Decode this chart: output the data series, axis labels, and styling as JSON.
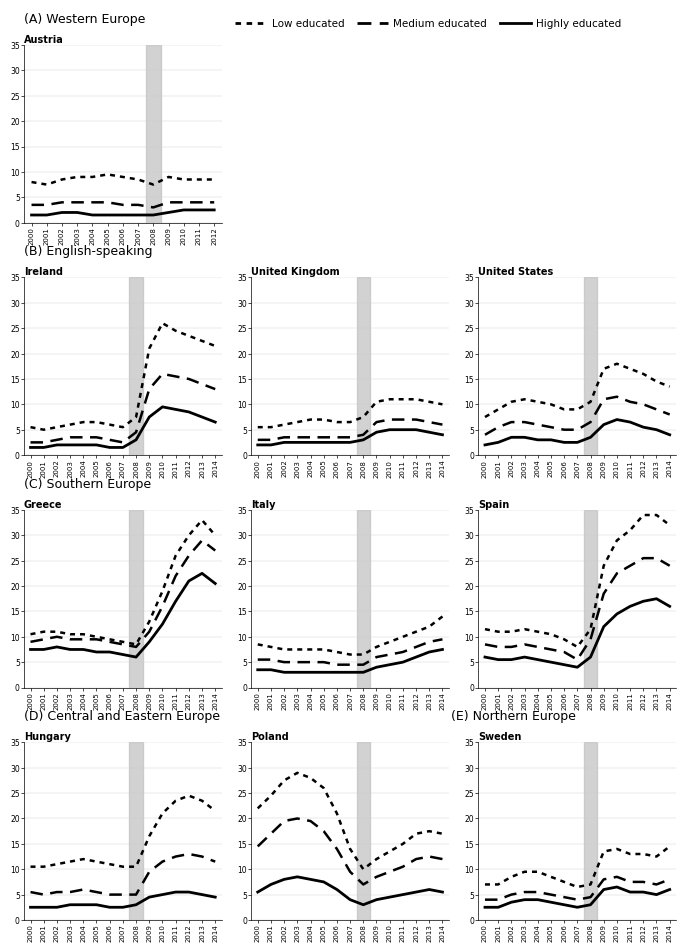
{
  "sections": [
    {
      "label": "(A) Western Europe",
      "countries": [
        {
          "name": "Austria",
          "years": [
            2000,
            2001,
            2002,
            2003,
            2004,
            2005,
            2006,
            2007,
            2008,
            2009,
            2010,
            2011,
            2012
          ],
          "low": [
            8.0,
            7.5,
            8.5,
            9.0,
            9.0,
            9.5,
            9.0,
            8.5,
            7.5,
            9.0,
            8.5,
            8.5,
            8.5
          ],
          "medium": [
            3.5,
            3.5,
            4.0,
            4.0,
            4.0,
            4.0,
            3.5,
            3.5,
            3.0,
            4.0,
            4.0,
            4.0,
            4.0
          ],
          "high": [
            1.5,
            1.5,
            2.0,
            2.0,
            1.5,
            1.5,
            1.5,
            1.5,
            1.5,
            2.0,
            2.5,
            2.5,
            2.5
          ]
        }
      ],
      "ncols": 1
    },
    {
      "label": "(B) English-speaking",
      "countries": [
        {
          "name": "Ireland",
          "years": [
            2000,
            2001,
            2002,
            2003,
            2004,
            2005,
            2006,
            2007,
            2008,
            2009,
            2010,
            2011,
            2012,
            2013,
            2014
          ],
          "low": [
            5.5,
            5.0,
            5.5,
            6.0,
            6.5,
            6.5,
            6.0,
            5.5,
            7.5,
            21.0,
            26.0,
            24.5,
            23.5,
            22.5,
            21.5
          ],
          "medium": [
            2.5,
            2.5,
            3.0,
            3.5,
            3.5,
            3.5,
            3.0,
            2.5,
            4.5,
            13.0,
            16.0,
            15.5,
            15.0,
            14.0,
            13.0
          ],
          "high": [
            1.5,
            1.5,
            2.0,
            2.0,
            2.0,
            2.0,
            1.5,
            1.5,
            3.0,
            7.5,
            9.5,
            9.0,
            8.5,
            7.5,
            6.5
          ]
        },
        {
          "name": "United Kingdom",
          "years": [
            2000,
            2001,
            2002,
            2003,
            2004,
            2005,
            2006,
            2007,
            2008,
            2009,
            2010,
            2011,
            2012,
            2013,
            2014
          ],
          "low": [
            5.5,
            5.5,
            6.0,
            6.5,
            7.0,
            7.0,
            6.5,
            6.5,
            7.5,
            10.5,
            11.0,
            11.0,
            11.0,
            10.5,
            10.0
          ],
          "medium": [
            3.0,
            3.0,
            3.5,
            3.5,
            3.5,
            3.5,
            3.5,
            3.5,
            4.0,
            6.5,
            7.0,
            7.0,
            7.0,
            6.5,
            6.0
          ],
          "high": [
            2.0,
            2.0,
            2.5,
            2.5,
            2.5,
            2.5,
            2.5,
            2.5,
            3.0,
            4.5,
            5.0,
            5.0,
            5.0,
            4.5,
            4.0
          ]
        },
        {
          "name": "United States",
          "years": [
            2000,
            2001,
            2002,
            2003,
            2004,
            2005,
            2006,
            2007,
            2008,
            2009,
            2010,
            2011,
            2012,
            2013,
            2014
          ],
          "low": [
            7.5,
            9.0,
            10.5,
            11.0,
            10.5,
            10.0,
            9.0,
            9.0,
            10.5,
            17.0,
            18.0,
            17.0,
            16.0,
            14.5,
            13.5
          ],
          "medium": [
            4.0,
            5.5,
            6.5,
            6.5,
            6.0,
            5.5,
            5.0,
            5.0,
            6.5,
            11.0,
            11.5,
            10.5,
            10.0,
            9.0,
            8.0
          ],
          "high": [
            2.0,
            2.5,
            3.5,
            3.5,
            3.0,
            3.0,
            2.5,
            2.5,
            3.5,
            6.0,
            7.0,
            6.5,
            5.5,
            5.0,
            4.0
          ]
        }
      ],
      "ncols": 3
    },
    {
      "label": "(C) Southern Europe",
      "countries": [
        {
          "name": "Greece",
          "years": [
            2000,
            2001,
            2002,
            2003,
            2004,
            2005,
            2006,
            2007,
            2008,
            2009,
            2010,
            2011,
            2012,
            2013,
            2014
          ],
          "low": [
            10.5,
            11.0,
            11.0,
            10.5,
            10.5,
            10.0,
            9.5,
            9.0,
            8.5,
            13.0,
            19.0,
            26.0,
            30.0,
            33.0,
            30.0
          ],
          "medium": [
            9.0,
            9.5,
            10.0,
            9.5,
            9.5,
            9.5,
            9.0,
            8.5,
            8.0,
            11.0,
            16.0,
            22.0,
            26.0,
            29.0,
            27.0
          ],
          "high": [
            7.5,
            7.5,
            8.0,
            7.5,
            7.5,
            7.0,
            7.0,
            6.5,
            6.0,
            9.0,
            12.5,
            17.0,
            21.0,
            22.5,
            20.5
          ]
        },
        {
          "name": "Italy",
          "years": [
            2000,
            2001,
            2002,
            2003,
            2004,
            2005,
            2006,
            2007,
            2008,
            2009,
            2010,
            2011,
            2012,
            2013,
            2014
          ],
          "low": [
            8.5,
            8.0,
            7.5,
            7.5,
            7.5,
            7.5,
            7.0,
            6.5,
            6.5,
            8.0,
            9.0,
            10.0,
            11.0,
            12.0,
            14.0
          ],
          "medium": [
            5.5,
            5.5,
            5.0,
            5.0,
            5.0,
            5.0,
            4.5,
            4.5,
            4.5,
            6.0,
            6.5,
            7.0,
            8.0,
            9.0,
            9.5
          ],
          "high": [
            3.5,
            3.5,
            3.0,
            3.0,
            3.0,
            3.0,
            3.0,
            3.0,
            3.0,
            4.0,
            4.5,
            5.0,
            6.0,
            7.0,
            7.5
          ]
        },
        {
          "name": "Spain",
          "years": [
            2000,
            2001,
            2002,
            2003,
            2004,
            2005,
            2006,
            2007,
            2008,
            2009,
            2010,
            2011,
            2012,
            2013,
            2014
          ],
          "low": [
            11.5,
            11.0,
            11.0,
            11.5,
            11.0,
            10.5,
            9.5,
            8.0,
            11.5,
            24.0,
            29.0,
            31.0,
            34.0,
            34.0,
            32.0
          ],
          "medium": [
            8.5,
            8.0,
            8.0,
            8.5,
            8.0,
            7.5,
            7.0,
            5.5,
            9.5,
            18.5,
            22.5,
            24.0,
            25.5,
            25.5,
            24.0
          ],
          "high": [
            6.0,
            5.5,
            5.5,
            6.0,
            5.5,
            5.0,
            4.5,
            4.0,
            6.0,
            12.0,
            14.5,
            16.0,
            17.0,
            17.5,
            16.0
          ]
        }
      ],
      "ncols": 3
    },
    {
      "label": "(D) Central and Eastern Europe",
      "label_e": "(E) Northern Europe",
      "countries": [
        {
          "name": "Hungary",
          "years": [
            2000,
            2001,
            2002,
            2003,
            2004,
            2005,
            2006,
            2007,
            2008,
            2009,
            2010,
            2011,
            2012,
            2013,
            2014
          ],
          "low": [
            10.5,
            10.5,
            11.0,
            11.5,
            12.0,
            11.5,
            11.0,
            10.5,
            10.5,
            16.5,
            21.0,
            23.5,
            24.5,
            23.5,
            21.5
          ],
          "medium": [
            5.5,
            5.0,
            5.5,
            5.5,
            6.0,
            5.5,
            5.0,
            5.0,
            5.0,
            9.5,
            11.5,
            12.5,
            13.0,
            12.5,
            11.5
          ],
          "high": [
            2.5,
            2.5,
            2.5,
            3.0,
            3.0,
            3.0,
            2.5,
            2.5,
            3.0,
            4.5,
            5.0,
            5.5,
            5.5,
            5.0,
            4.5
          ]
        },
        {
          "name": "Poland",
          "years": [
            2000,
            2001,
            2002,
            2003,
            2004,
            2005,
            2006,
            2007,
            2008,
            2009,
            2010,
            2011,
            2012,
            2013,
            2014
          ],
          "low": [
            22.0,
            24.5,
            27.5,
            29.0,
            28.0,
            26.0,
            21.0,
            14.0,
            10.0,
            12.0,
            13.5,
            15.0,
            17.0,
            17.5,
            17.0
          ],
          "medium": [
            14.5,
            17.0,
            19.5,
            20.0,
            19.5,
            17.5,
            14.0,
            9.5,
            7.0,
            8.5,
            9.5,
            10.5,
            12.0,
            12.5,
            12.0
          ],
          "high": [
            5.5,
            7.0,
            8.0,
            8.5,
            8.0,
            7.5,
            6.0,
            4.0,
            3.0,
            4.0,
            4.5,
            5.0,
            5.5,
            6.0,
            5.5
          ]
        },
        {
          "name": "Sweden",
          "years": [
            2000,
            2001,
            2002,
            2003,
            2004,
            2005,
            2006,
            2007,
            2008,
            2009,
            2010,
            2011,
            2012,
            2013,
            2014
          ],
          "low": [
            7.0,
            7.0,
            8.5,
            9.5,
            9.5,
            8.5,
            7.5,
            6.5,
            7.0,
            13.5,
            14.0,
            13.0,
            13.0,
            12.5,
            14.5
          ],
          "medium": [
            4.0,
            4.0,
            5.0,
            5.5,
            5.5,
            5.0,
            4.5,
            4.0,
            4.5,
            8.0,
            8.5,
            7.5,
            7.5,
            7.0,
            8.0
          ],
          "high": [
            2.5,
            2.5,
            3.5,
            4.0,
            4.0,
            3.5,
            3.0,
            2.5,
            3.0,
            6.0,
            6.5,
            5.5,
            5.5,
            5.0,
            6.0
          ]
        }
      ],
      "ncols": 3
    }
  ],
  "legend": {
    "low_label": "Low educated",
    "medium_label": "Medium educated",
    "high_label": "Highly educated"
  },
  "ylim": [
    0,
    35
  ],
  "yticks": [
    0,
    5,
    10,
    15,
    20,
    25,
    30,
    35
  ],
  "recession_color": "#c0c0c0",
  "recession_alpha": 0.7,
  "low_lw": 1.8,
  "medium_lw": 1.8,
  "high_lw": 2.0
}
